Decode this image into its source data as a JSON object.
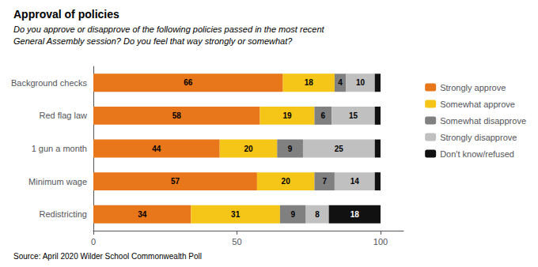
{
  "chart_data": {
    "type": "bar",
    "orientation": "horizontal",
    "stacked": true,
    "title": "Approval of policies",
    "subtitle": "Do you approve or disapprove of the following policies passed in the most recent\nGeneral Assembly session? Do you feel that way strongly or somewhat?",
    "source": "Source: April 2020 Wilder School Commonwealth Poll",
    "categories": [
      "Background checks",
      "Red flag law",
      "1 gun a month",
      "Minimum wage",
      "Redistricting"
    ],
    "series": [
      {
        "name": "Strongly approve",
        "color": "#E8761A",
        "values": [
          66,
          58,
          44,
          57,
          34
        ]
      },
      {
        "name": "Somewhat approve",
        "color": "#F5C518",
        "values": [
          18,
          19,
          20,
          20,
          31
        ]
      },
      {
        "name": "Somewhat disapprove",
        "color": "#808080",
        "values": [
          4,
          6,
          9,
          7,
          9
        ]
      },
      {
        "name": "Strongly disapprove",
        "color": "#C0C0C0",
        "values": [
          10,
          15,
          25,
          14,
          8
        ]
      },
      {
        "name": "Don't know/refused",
        "color": "#111111",
        "values": [
          2,
          2,
          2,
          2,
          18
        ],
        "value_labels": [
          null,
          null,
          null,
          null,
          "18"
        ]
      }
    ],
    "xlim": [
      0,
      108
    ],
    "xticks": [
      0,
      50,
      100
    ],
    "data_labels": true,
    "grid": false,
    "legend": "right"
  }
}
